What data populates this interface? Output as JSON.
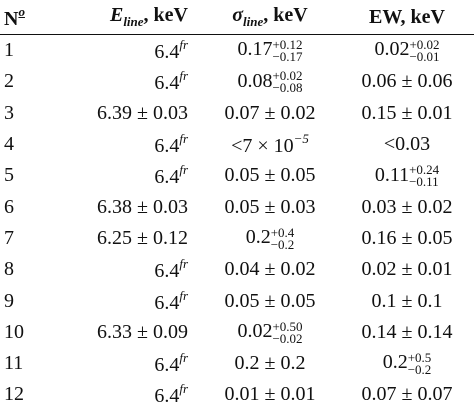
{
  "table": {
    "header": [
      {
        "text": "N",
        "sup": "o"
      },
      {
        "text": "E",
        "sub": "line",
        "tail": ", keV"
      },
      {
        "text": "σ",
        "sub": "line",
        "tail": ", keV"
      },
      {
        "text": "EW, keV"
      }
    ],
    "rows": [
      [
        {
          "text": "1"
        },
        {
          "text": "6.4",
          "sup": "fr"
        },
        {
          "text": "0.17",
          "sup": "+0.12",
          "sub": "−0.17"
        },
        {
          "text": "0.02",
          "sup": "+0.02",
          "sub": "−0.01"
        }
      ],
      [
        {
          "text": "2"
        },
        {
          "text": "6.4",
          "sup": "fr"
        },
        {
          "text": "0.08",
          "sup": "+0.02",
          "sub": "−0.08"
        },
        {
          "text": "0.06 ± 0.06"
        }
      ],
      [
        {
          "text": "3"
        },
        {
          "text": "6.39 ± 0.03"
        },
        {
          "text": "0.07 ± 0.02"
        },
        {
          "text": "0.15 ± 0.01"
        }
      ],
      [
        {
          "text": "4"
        },
        {
          "text": "6.4",
          "sup": "fr"
        },
        {
          "text": "<7 × 10",
          "sup": "−5"
        },
        {
          "text": "<0.03"
        }
      ],
      [
        {
          "text": "5"
        },
        {
          "text": "6.4",
          "sup": "fr"
        },
        {
          "text": "0.05 ± 0.05"
        },
        {
          "text": "0.11",
          "sup": "+0.24",
          "sub": "−0.11"
        }
      ],
      [
        {
          "text": "6"
        },
        {
          "text": "6.38 ± 0.03"
        },
        {
          "text": "0.05 ± 0.03"
        },
        {
          "text": "0.03 ± 0.02"
        }
      ],
      [
        {
          "text": "7"
        },
        {
          "text": "6.25 ± 0.12"
        },
        {
          "text": "0.2",
          "sup": "+0.4",
          "sub": "−0.2"
        },
        {
          "text": "0.16 ± 0.05"
        }
      ],
      [
        {
          "text": "8"
        },
        {
          "text": "6.4",
          "sup": "fr"
        },
        {
          "text": "0.04 ± 0.02"
        },
        {
          "text": "0.02 ± 0.01"
        }
      ],
      [
        {
          "text": "9"
        },
        {
          "text": "6.4",
          "sup": "fr"
        },
        {
          "text": "0.05 ± 0.05"
        },
        {
          "text": "0.1 ± 0.1"
        }
      ],
      [
        {
          "text": "10"
        },
        {
          "text": "6.33 ± 0.09"
        },
        {
          "text": "0.02",
          "sup": "+0.50",
          "sub": "−0.02"
        },
        {
          "text": "0.14 ± 0.14"
        }
      ],
      [
        {
          "text": "11"
        },
        {
          "text": "6.4",
          "sup": "fr"
        },
        {
          "text": "0.2 ± 0.2"
        },
        {
          "text": "0.2",
          "sup": "+0.5",
          "sub": "−0.2"
        }
      ],
      [
        {
          "text": "12"
        },
        {
          "text": "6.4",
          "sup": "fr"
        },
        {
          "text": "0.01 ± 0.01"
        },
        {
          "text": "0.07 ± 0.07"
        }
      ]
    ]
  }
}
